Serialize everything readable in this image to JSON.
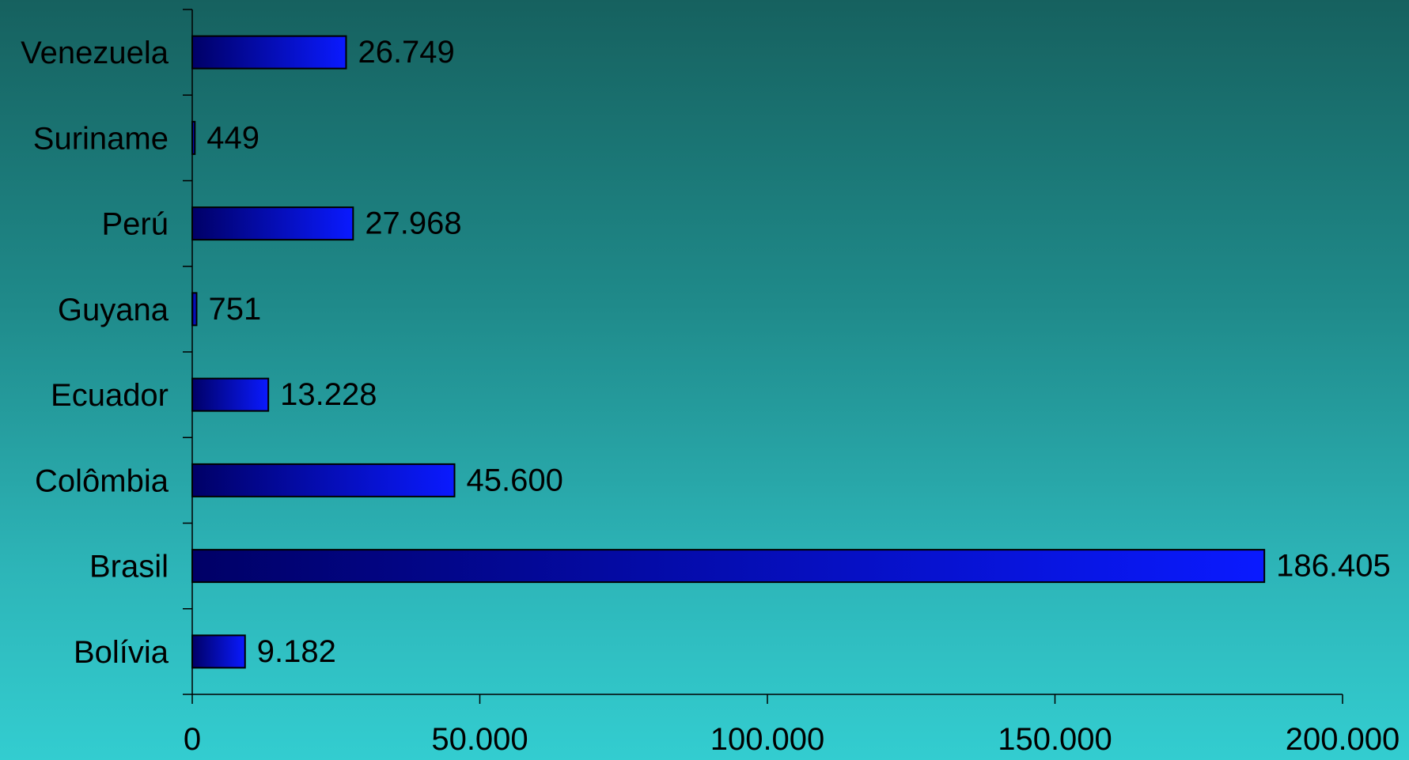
{
  "chart_data": {
    "type": "bar",
    "orientation": "horizontal",
    "categories": [
      "Bolívia",
      "Brasil",
      "Colômbia",
      "Ecuador",
      "Guyana",
      "Perú",
      "Suriname",
      "Venezuela"
    ],
    "values": [
      9182,
      186405,
      45600,
      13228,
      751,
      27968,
      449,
      26749
    ],
    "value_labels": [
      "9.182",
      "186.405",
      "45.600",
      "13.228",
      "751",
      "27.968",
      "449",
      "26.749"
    ],
    "xlim": [
      0,
      200000
    ],
    "xticks": [
      0,
      50000,
      100000,
      150000,
      200000
    ],
    "xtick_labels": [
      "0",
      "50.000",
      "100.000",
      "150.000",
      "200.000"
    ],
    "title": "",
    "xlabel": "",
    "ylabel": "",
    "grid": false,
    "legend": "none",
    "colors": {
      "bar_dark": "#000066",
      "bar_light": "#0a1aff",
      "bar_edge": "#000000",
      "axis": "#000000"
    }
  }
}
